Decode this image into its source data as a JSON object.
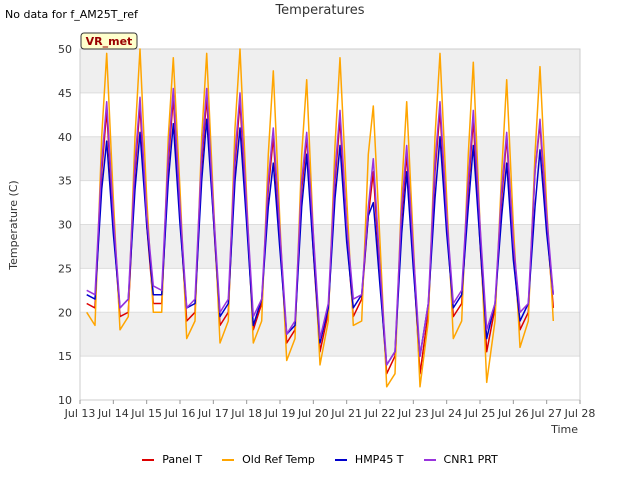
{
  "header": {
    "no_data_text": "No data for f_AM25T_ref"
  },
  "chart_data": {
    "type": "line",
    "title": "Temperatures",
    "xlabel": "Time",
    "ylabel": "Temperature (C)",
    "badge_label": "VR_met",
    "ylim": [
      10,
      50
    ],
    "xlim": [
      13,
      28
    ],
    "y_ticks": [
      10,
      15,
      20,
      25,
      30,
      35,
      40,
      45,
      50
    ],
    "x_ticks": [
      13,
      14,
      15,
      16,
      17,
      18,
      19,
      20,
      21,
      22,
      23,
      24,
      25,
      26,
      27,
      28
    ],
    "x_tick_labels": [
      "Jul 13",
      "Jul 14",
      "Jul 15",
      "Jul 16",
      "Jul 17",
      "Jul 18",
      "Jul 19",
      "Jul 20",
      "Jul 21",
      "Jul 22",
      "Jul 23",
      "Jul 24",
      "Jul 25",
      "Jul 26",
      "Jul 27",
      "Jul 28"
    ],
    "grid": true,
    "series": [
      {
        "name": "Panel T",
        "color": "#dd0000",
        "x": [
          13.2,
          13.45,
          13.65,
          13.8,
          14.0,
          14.2,
          14.45,
          14.65,
          14.8,
          15.0,
          15.2,
          15.45,
          15.65,
          15.8,
          16.0,
          16.2,
          16.45,
          16.65,
          16.8,
          17.0,
          17.2,
          17.45,
          17.65,
          17.8,
          18.0,
          18.2,
          18.45,
          18.65,
          18.8,
          19.0,
          19.2,
          19.45,
          19.65,
          19.8,
          20.0,
          20.2,
          20.45,
          20.65,
          20.8,
          21.0,
          21.2,
          21.45,
          21.65,
          21.8,
          22.0,
          22.2,
          22.45,
          22.65,
          22.8,
          23.0,
          23.2,
          23.45,
          23.65,
          23.8,
          24.0,
          24.2,
          24.45,
          24.65,
          24.8,
          25.0,
          25.2,
          25.45,
          25.65,
          25.8,
          26.0,
          26.2,
          26.45,
          26.65,
          26.8,
          27.0,
          27.2
        ],
        "y": [
          21.0,
          20.5,
          36.0,
          43.0,
          30.0,
          19.5,
          20.0,
          36.0,
          43.5,
          30.0,
          21.0,
          21.0,
          37.0,
          44.5,
          31.0,
          19.0,
          20.0,
          37.0,
          44.5,
          31.0,
          18.5,
          20.0,
          37.0,
          44.0,
          31.0,
          18.0,
          21.0,
          34.0,
          40.0,
          28.0,
          16.5,
          18.0,
          34.0,
          40.0,
          27.0,
          15.5,
          20.0,
          35.0,
          42.0,
          29.0,
          19.5,
          21.5,
          31.0,
          36.0,
          24.0,
          13.0,
          15.0,
          31.0,
          38.0,
          26.0,
          13.0,
          20.0,
          36.0,
          43.0,
          30.0,
          19.5,
          21.0,
          34.0,
          42.0,
          28.0,
          15.5,
          20.5,
          33.0,
          40.0,
          27.0,
          18.0,
          20.0,
          36.0,
          41.5,
          30.0,
          20.5
        ]
      },
      {
        "name": "Old Ref Temp",
        "color": "#ffa500",
        "x": [
          13.2,
          13.45,
          13.65,
          13.8,
          14.0,
          14.2,
          14.45,
          14.65,
          14.8,
          15.0,
          15.2,
          15.45,
          15.65,
          15.8,
          16.0,
          16.2,
          16.45,
          16.65,
          16.8,
          17.0,
          17.2,
          17.45,
          17.65,
          17.8,
          18.0,
          18.2,
          18.45,
          18.65,
          18.8,
          19.0,
          19.2,
          19.45,
          19.65,
          19.8,
          20.0,
          20.2,
          20.45,
          20.65,
          20.8,
          21.0,
          21.2,
          21.45,
          21.65,
          21.8,
          22.0,
          22.2,
          22.45,
          22.65,
          22.8,
          23.0,
          23.2,
          23.45,
          23.65,
          23.8,
          24.0,
          24.2,
          24.45,
          24.65,
          24.8,
          25.0,
          25.2,
          25.45,
          25.65,
          25.8,
          26.0,
          26.2,
          26.45,
          26.65,
          26.8,
          27.0,
          27.2
        ],
        "y": [
          20.0,
          18.5,
          40.0,
          49.5,
          33.0,
          18.0,
          19.5,
          40.0,
          50.0,
          33.0,
          20.0,
          20.0,
          40.0,
          49.0,
          34.0,
          17.0,
          19.0,
          40.0,
          49.5,
          33.0,
          16.5,
          19.0,
          41.0,
          50.0,
          33.0,
          16.5,
          19.0,
          38.0,
          47.5,
          30.0,
          14.5,
          17.0,
          38.0,
          46.5,
          29.0,
          14.0,
          19.0,
          39.0,
          49.0,
          33.0,
          18.5,
          19.0,
          38.0,
          43.5,
          28.0,
          11.5,
          13.0,
          34.0,
          44.0,
          28.0,
          11.5,
          19.0,
          40.0,
          49.5,
          33.0,
          17.0,
          19.0,
          38.0,
          48.5,
          30.0,
          12.0,
          19.0,
          36.0,
          46.5,
          30.0,
          16.0,
          19.0,
          38.0,
          48.0,
          32.0,
          19.0
        ]
      },
      {
        "name": "HMP45 T",
        "color": "#0000cc",
        "x": [
          13.2,
          13.45,
          13.65,
          13.8,
          14.0,
          14.2,
          14.45,
          14.65,
          14.8,
          15.0,
          15.2,
          15.45,
          15.65,
          15.8,
          16.0,
          16.2,
          16.45,
          16.65,
          16.8,
          17.0,
          17.2,
          17.45,
          17.65,
          17.8,
          18.0,
          18.2,
          18.45,
          18.65,
          18.8,
          19.0,
          19.2,
          19.45,
          19.65,
          19.8,
          20.0,
          20.2,
          20.45,
          20.65,
          20.8,
          21.0,
          21.2,
          21.45,
          21.65,
          21.8,
          22.0,
          22.2,
          22.45,
          22.65,
          22.8,
          23.0,
          23.2,
          23.45,
          23.65,
          23.8,
          24.0,
          24.2,
          24.45,
          24.65,
          24.8,
          25.0,
          25.2,
          25.45,
          25.65,
          25.8,
          26.0,
          26.2,
          26.45,
          26.65,
          26.8,
          27.0,
          27.2
        ],
        "y": [
          22.0,
          21.5,
          34.0,
          39.5,
          29.0,
          20.5,
          21.5,
          34.0,
          40.5,
          30.0,
          22.0,
          22.0,
          35.0,
          41.5,
          30.0,
          20.5,
          21.0,
          35.0,
          42.0,
          31.0,
          19.5,
          21.0,
          35.0,
          41.0,
          30.0,
          18.5,
          21.5,
          32.0,
          37.0,
          27.0,
          17.5,
          18.5,
          32.0,
          38.0,
          27.0,
          16.5,
          20.5,
          33.0,
          39.0,
          28.0,
          20.5,
          22.0,
          31.0,
          32.5,
          23.0,
          14.0,
          15.5,
          29.0,
          36.0,
          25.0,
          15.0,
          21.0,
          33.0,
          40.0,
          29.0,
          20.5,
          22.0,
          32.0,
          39.0,
          28.0,
          17.0,
          21.0,
          31.0,
          37.0,
          26.0,
          19.0,
          21.0,
          32.0,
          38.5,
          29.0,
          22.0
        ]
      },
      {
        "name": "CNR1 PRT",
        "color": "#9933dd",
        "x": [
          13.2,
          13.45,
          13.65,
          13.8,
          14.0,
          14.2,
          14.45,
          14.65,
          14.8,
          15.0,
          15.2,
          15.45,
          15.65,
          15.8,
          16.0,
          16.2,
          16.45,
          16.65,
          16.8,
          17.0,
          17.2,
          17.45,
          17.65,
          17.8,
          18.0,
          18.2,
          18.45,
          18.65,
          18.8,
          19.0,
          19.2,
          19.45,
          19.65,
          19.8,
          20.0,
          20.2,
          20.45,
          20.65,
          20.8,
          21.0,
          21.2,
          21.45,
          21.65,
          21.8,
          22.0,
          22.2,
          22.45,
          22.65,
          22.8,
          23.0,
          23.2,
          23.45,
          23.65,
          23.8,
          24.0,
          24.2,
          24.45,
          24.65,
          24.8,
          25.0,
          25.2,
          25.45,
          25.65,
          25.8,
          26.0,
          26.2,
          26.45,
          26.65,
          26.8,
          27.0,
          27.2
        ],
        "y": [
          22.5,
          22.0,
          37.0,
          44.0,
          31.0,
          20.5,
          21.5,
          37.0,
          44.5,
          31.0,
          23.0,
          22.5,
          38.0,
          45.5,
          32.0,
          20.5,
          21.5,
          38.0,
          45.5,
          32.0,
          20.0,
          21.5,
          38.0,
          45.0,
          32.0,
          19.5,
          21.5,
          35.0,
          41.0,
          29.0,
          17.5,
          19.0,
          35.0,
          40.5,
          29.0,
          17.0,
          21.0,
          36.0,
          43.0,
          30.0,
          21.5,
          22.0,
          32.0,
          37.5,
          25.0,
          14.0,
          15.5,
          32.0,
          39.0,
          27.0,
          15.0,
          21.0,
          37.0,
          44.0,
          31.0,
          21.0,
          22.5,
          35.0,
          43.0,
          30.0,
          18.0,
          21.0,
          34.0,
          40.5,
          28.0,
          20.0,
          21.0,
          36.0,
          42.0,
          31.0,
          22.0
        ]
      }
    ]
  }
}
